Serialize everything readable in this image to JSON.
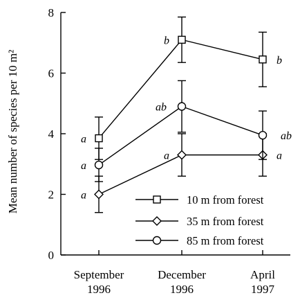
{
  "chart_data": {
    "type": "line",
    "ylabel": "Mean number of species per 10 m²",
    "ylim": [
      0,
      8
    ],
    "y_ticks": [
      "0",
      "2",
      "4",
      "6",
      "8"
    ],
    "categories": [
      [
        "September",
        "1996"
      ],
      [
        "December",
        "1996"
      ],
      [
        "April",
        "1997"
      ]
    ],
    "series": [
      {
        "name": "10 m from forest",
        "marker": "square",
        "values": [
          3.85,
          7.1,
          6.45
        ],
        "errors": [
          0.7,
          0.75,
          0.9
        ],
        "labels": [
          "a",
          "b",
          "b"
        ]
      },
      {
        "name": "35 m from forest",
        "marker": "diamond",
        "values": [
          2.0,
          3.3,
          3.3
        ],
        "errors": [
          0.6,
          0.7,
          0.7
        ],
        "labels": [
          "a",
          "a",
          "a"
        ]
      },
      {
        "name": "85 m from forest",
        "marker": "circle",
        "values": [
          2.97,
          4.9,
          3.95
        ],
        "errors": [
          0.55,
          0.85,
          0.8
        ],
        "labels": [
          "a",
          "ab",
          "ab"
        ]
      }
    ],
    "legend": "bottom-right"
  }
}
